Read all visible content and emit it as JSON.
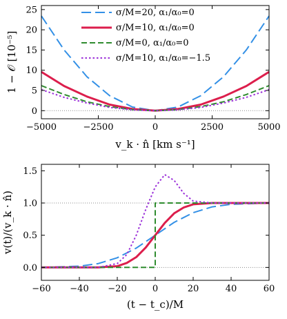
{
  "chart_data": [
    {
      "type": "line",
      "xlabel": "v_k · n̂  [km s⁻¹]",
      "ylabel": "1 − 𝒪  [10⁻⁵]",
      "xlim": [
        -5000,
        5000
      ],
      "ylim": [
        -2,
        26
      ],
      "xticks": [
        -5000,
        -2500,
        0,
        2500,
        5000
      ],
      "xtick_labels": [
        "−5000",
        "−2500",
        "0",
        "2500",
        "5000"
      ],
      "yticks": [
        0,
        5,
        10,
        15,
        20,
        25
      ],
      "ytick_labels": [
        "0",
        "5",
        "10",
        "15",
        "20",
        "25"
      ],
      "reference_line": {
        "y": 0,
        "style": "dotted"
      },
      "legend_position": "top-center",
      "series": [
        {
          "name": "σ/M=20, α₁/α₀=0",
          "color": "#3390e6",
          "dash": "long-dash",
          "x": [
            -5000,
            -4000,
            -3000,
            -2000,
            -1000,
            0,
            1000,
            2000,
            3000,
            4000,
            5000
          ],
          "y": [
            23.4,
            15.0,
            8.4,
            3.7,
            0.9,
            0.0,
            0.9,
            3.7,
            8.4,
            15.0,
            23.4
          ]
        },
        {
          "name": "σ/M=10, α₁/α₀=0",
          "color": "#dc1e4c",
          "dash": "solid",
          "x": [
            -5000,
            -4000,
            -3000,
            -2000,
            -1000,
            0,
            1000,
            2000,
            3000,
            4000,
            5000
          ],
          "y": [
            9.6,
            6.1,
            3.5,
            1.5,
            0.4,
            0.0,
            0.4,
            1.5,
            3.5,
            6.1,
            9.6
          ]
        },
        {
          "name": "σ/M=0,   α₁/α₀=0",
          "color": "#2e8b2e",
          "dash": "dash",
          "x": [
            -5000,
            -4000,
            -3000,
            -2000,
            -1000,
            0,
            1000,
            2000,
            3000,
            4000,
            5000
          ],
          "y": [
            6.2,
            4.0,
            2.2,
            1.0,
            0.25,
            0.0,
            0.25,
            1.0,
            2.2,
            4.0,
            6.2
          ]
        },
        {
          "name": "σ/M=10, α₁/α₀=−1.5",
          "color": "#9b30d9",
          "dash": "dotted",
          "x": [
            -5000,
            -4000,
            -3000,
            -2000,
            -1000,
            0,
            1000,
            2000,
            3000,
            4000,
            5000
          ],
          "y": [
            5.2,
            3.3,
            1.9,
            0.8,
            0.2,
            0.0,
            0.2,
            0.8,
            1.9,
            3.3,
            5.2
          ]
        }
      ]
    },
    {
      "type": "line",
      "xlabel": "(t − t_c)/M",
      "ylabel": "v(t)/(v_k · n̂)",
      "xlim": [
        -60,
        60
      ],
      "ylim": [
        -0.2,
        1.6
      ],
      "xticks": [
        -60,
        -40,
        -20,
        0,
        20,
        40,
        60
      ],
      "xtick_labels": [
        "−60",
        "−40",
        "−20",
        "0",
        "20",
        "40",
        "60"
      ],
      "yticks": [
        0.0,
        0.5,
        1.0,
        1.5
      ],
      "ytick_labels": [
        "0.0",
        "0.5",
        "1.0",
        "1.5"
      ],
      "reference_lines": [
        {
          "y": 0.0,
          "style": "dotted"
        },
        {
          "y": 1.0,
          "style": "dotted"
        }
      ],
      "series": [
        {
          "name": "σ/M=20, α₁/α₀=0",
          "color": "#3390e6",
          "dash": "long-dash",
          "x": [
            -60,
            -40,
            -30,
            -20,
            -10,
            0,
            10,
            20,
            30,
            40,
            60
          ],
          "y": [
            0.0,
            0.02,
            0.06,
            0.15,
            0.3,
            0.5,
            0.7,
            0.85,
            0.94,
            0.98,
            1.0
          ]
        },
        {
          "name": "σ/M=10, α₁/α₀=0",
          "color": "#dc1e4c",
          "dash": "solid",
          "x": [
            -60,
            -30,
            -20,
            -15,
            -10,
            -5,
            0,
            5,
            10,
            15,
            20,
            30,
            60
          ],
          "y": [
            0.0,
            0.0,
            0.02,
            0.07,
            0.16,
            0.31,
            0.5,
            0.69,
            0.84,
            0.93,
            0.98,
            1.0,
            1.0
          ]
        },
        {
          "name": "σ/M=0,   α₁/α₀=0",
          "color": "#2e8b2e",
          "dash": "dash",
          "x": [
            -60,
            0,
            0,
            60
          ],
          "y": [
            0.0,
            0.0,
            1.0,
            1.0
          ]
        },
        {
          "name": "σ/M=10, α₁/α₀=−1.5",
          "color": "#9b30d9",
          "dash": "dotted",
          "x": [
            -60,
            -30,
            -20,
            -15,
            -10,
            -5,
            0,
            5,
            10,
            15,
            20,
            30,
            60
          ],
          "y": [
            0.0,
            0.0,
            0.06,
            0.2,
            0.5,
            0.9,
            1.25,
            1.44,
            1.35,
            1.15,
            1.03,
            1.0,
            1.0
          ]
        }
      ]
    }
  ]
}
